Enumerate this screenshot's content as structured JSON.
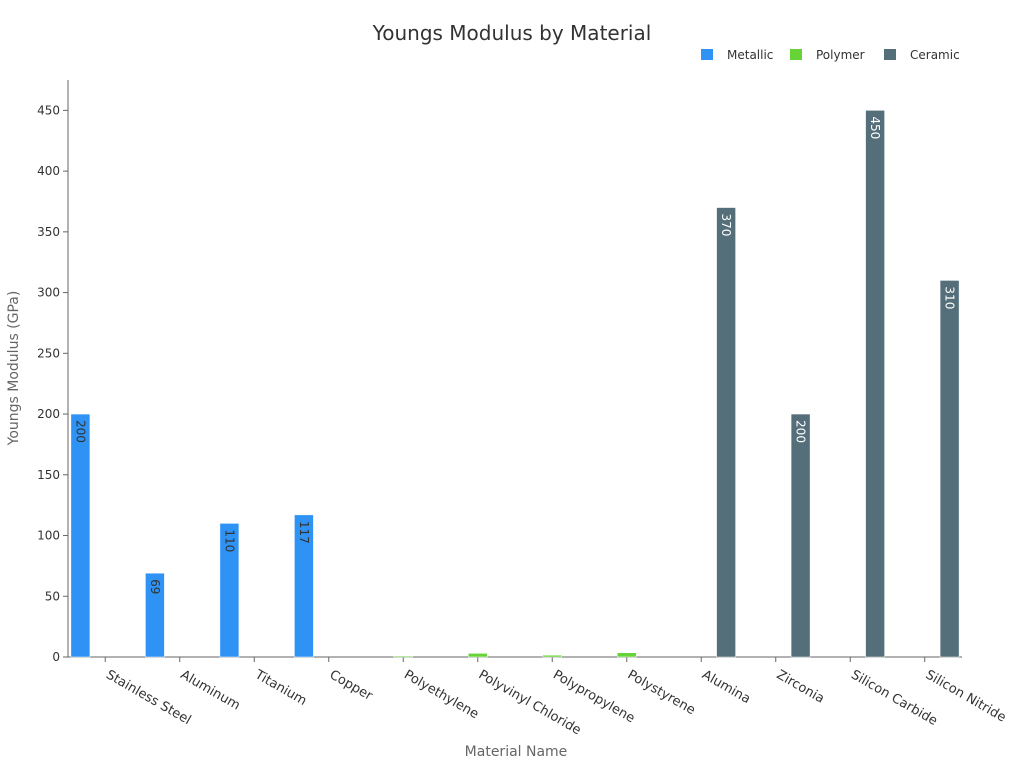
{
  "chart_data": {
    "type": "bar",
    "title": "Youngs Modulus by Material",
    "xlabel": "Material Name",
    "ylabel": "Youngs Modulus (GPa)",
    "ylim": [
      0,
      475
    ],
    "yticks": [
      0,
      50,
      100,
      150,
      200,
      250,
      300,
      350,
      400,
      450
    ],
    "categories": [
      "Stainless Steel",
      "Aluminum",
      "Titanium",
      "Copper",
      "Polyethylene",
      "Polyvinyl Chloride",
      "Polypropylene",
      "Polystyrene",
      "Alumina",
      "Zirconia",
      "Silicon Carbide",
      "Silicon Nitride"
    ],
    "series": [
      {
        "name": "Metallic",
        "color": "#2f93f5",
        "label_color": "#333333",
        "values": [
          200,
          69,
          110,
          117,
          null,
          null,
          null,
          null,
          null,
          null,
          null,
          null
        ]
      },
      {
        "name": "Polymer",
        "color": "#66d436",
        "label_color": "#333333",
        "values": [
          null,
          null,
          null,
          null,
          0.8,
          3,
          1.5,
          3.5,
          null,
          null,
          null,
          null
        ]
      },
      {
        "name": "Ceramic",
        "color": "#546e7a",
        "label_color": "#ffffff",
        "values": [
          null,
          null,
          null,
          null,
          null,
          null,
          null,
          null,
          370,
          200,
          450,
          310
        ]
      }
    ],
    "data_labels": [
      {
        "category": "Stainless Steel",
        "text": "200"
      },
      {
        "category": "Aluminum",
        "text": "69"
      },
      {
        "category": "Titanium",
        "text": "110"
      },
      {
        "category": "Copper",
        "text": "117"
      },
      {
        "category": "Alumina",
        "text": "370"
      },
      {
        "category": "Zirconia",
        "text": "200"
      },
      {
        "category": "Silicon Carbide",
        "text": "450"
      },
      {
        "category": "Silicon Nitride",
        "text": "310"
      }
    ],
    "legend_position": "top-right",
    "grid": false
  }
}
